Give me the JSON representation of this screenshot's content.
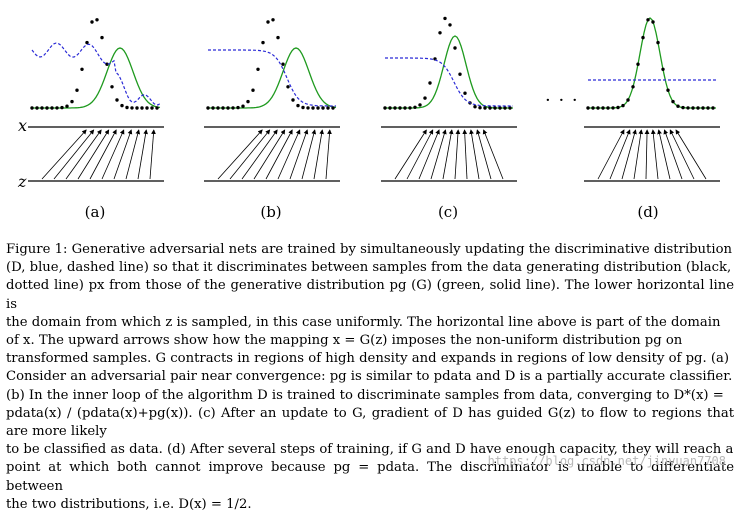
{
  "figure": {
    "axis_labels": {
      "x": "x",
      "z": "z"
    },
    "panel_labels": [
      "(a)",
      "(b)",
      "(c)",
      "(d)"
    ],
    "ellipsis": "· · ·",
    "colors": {
      "discriminator": "#2b2bd6",
      "generator": "#1f9a1f",
      "data": "#000000"
    }
  },
  "caption": {
    "lines": [
      "Figure 1: Generative adversarial nets are trained by simultaneously updating the discriminative distribution",
      "(D, blue, dashed line) so that it discriminates between samples from the data generating distribution (black,",
      "dotted line) px from those of the generative distribution pg (G) (green, solid line). The lower horizontal line is",
      "the domain from which z is sampled, in this case uniformly. The horizontal line above is part of the domain",
      "of x. The upward arrows show how the mapping x = G(z) imposes the non-uniform distribution pg on",
      "transformed samples. G contracts in regions of high density and expands in regions of low density of pg. (a)",
      "Consider an adversarial pair near convergence: pg is similar to pdata and D is a partially accurate classifier.",
      "(b) In the inner loop of the algorithm D is trained to discriminate samples from data, converging to D*(x) =",
      "pdata(x) / (pdata(x)+pg(x)). (c) After an update to G, gradient of D has guided G(z) to flow to regions that are more likely",
      "to be classified as data. (d) After several steps of training, if G and D have enough capacity, they will reach a",
      "point at which both cannot improve because pg = pdata. The discriminator is unable to differentiate between",
      "the two distributions, i.e. D(x) = 1/2."
    ]
  },
  "watermark": "https://blog.csdn.net/jinyuan7708"
}
